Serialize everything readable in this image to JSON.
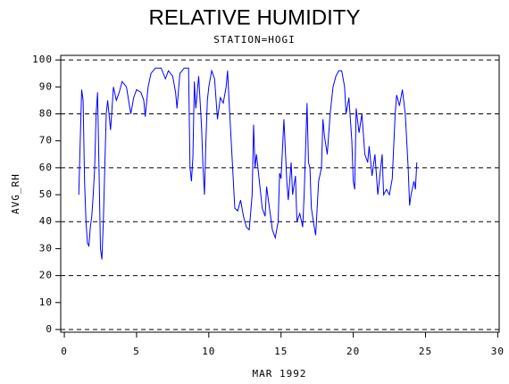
{
  "chart_data": {
    "type": "line",
    "title": "RELATIVE HUMIDITY",
    "subtitle": "STATION=HOGI",
    "x_label": "MAR 1992",
    "y_label": "AVG_RH",
    "xlim": [
      -0.25,
      30.1
    ],
    "ylim": [
      -1,
      101.7
    ],
    "xticks": [
      0,
      5,
      10,
      15,
      20,
      25,
      30
    ],
    "yticks": [
      0,
      10,
      20,
      30,
      40,
      50,
      60,
      70,
      80,
      90,
      100
    ],
    "grid": true,
    "x": [
      1.0,
      1.1,
      1.2,
      1.3,
      1.4,
      1.5,
      1.6,
      1.7,
      1.8,
      1.9,
      2.0,
      2.1,
      2.2,
      2.3,
      2.4,
      2.5,
      2.6,
      2.7,
      2.8,
      2.9,
      3.0,
      3.2,
      3.4,
      3.6,
      3.8,
      4.0,
      4.3,
      4.6,
      4.8,
      5.0,
      5.3,
      5.5,
      5.6,
      5.8,
      6.0,
      6.3,
      6.7,
      7.0,
      7.2,
      7.5,
      7.7,
      7.8,
      8.0,
      8.3,
      8.6,
      8.7,
      8.8,
      8.9,
      9.0,
      9.1,
      9.2,
      9.3,
      9.5,
      9.6,
      9.7,
      9.8,
      9.9,
      10.0,
      10.2,
      10.4,
      10.6,
      10.8,
      11.0,
      11.2,
      11.3,
      11.4,
      11.6,
      11.8,
      12.0,
      12.2,
      12.4,
      12.6,
      12.8,
      13.0,
      13.1,
      13.2,
      13.3,
      13.5,
      13.7,
      13.9,
      14.0,
      14.2,
      14.4,
      14.6,
      14.8,
      14.9,
      15.0,
      15.2,
      15.4,
      15.5,
      15.7,
      15.8,
      16.0,
      16.1,
      16.3,
      16.5,
      16.6,
      16.8,
      16.9,
      17.0,
      17.1,
      17.3,
      17.4,
      17.6,
      17.8,
      17.9,
      18.0,
      18.2,
      18.4,
      18.6,
      18.8,
      19.0,
      19.2,
      19.4,
      19.5,
      19.7,
      19.9,
      20.0,
      20.1,
      20.2,
      20.4,
      20.6,
      20.8,
      21.0,
      21.1,
      21.3,
      21.5,
      21.7,
      21.8,
      22.0,
      22.1,
      22.3,
      22.5,
      22.7,
      22.9,
      23.0,
      23.2,
      23.4,
      23.6,
      23.8,
      23.9,
      24.0,
      24.2,
      24.3,
      24.4
    ],
    "series": [
      {
        "name": "AVG_RH",
        "color": "#0000ff",
        "values": [
          50,
          70,
          89,
          85,
          55,
          40,
          32,
          31,
          38,
          42,
          50,
          60,
          80,
          88,
          60,
          30,
          26,
          40,
          60,
          80,
          85,
          74,
          90,
          85,
          88,
          92,
          90,
          80,
          86,
          89,
          88,
          85,
          79,
          90,
          95,
          97,
          97,
          93,
          96,
          94,
          88,
          82,
          95,
          97,
          97,
          60,
          55,
          64,
          92,
          82,
          88,
          94,
          75,
          60,
          50,
          70,
          85,
          90,
          96,
          93,
          78,
          86,
          84,
          90,
          96,
          85,
          65,
          45,
          44,
          48,
          42,
          38,
          37,
          50,
          76,
          60,
          65,
          55,
          45,
          42,
          53,
          45,
          37,
          34,
          40,
          58,
          56,
          78,
          55,
          48,
          62,
          50,
          57,
          40,
          43,
          38,
          50,
          84,
          62,
          60,
          45,
          38,
          35,
          55,
          60,
          78,
          72,
          65,
          80,
          90,
          94,
          96,
          96,
          90,
          80,
          86,
          70,
          55,
          52,
          82,
          73,
          80,
          65,
          62,
          68,
          57,
          65,
          50,
          55,
          65,
          50,
          52,
          50,
          56,
          80,
          87,
          83,
          89,
          80,
          60,
          46,
          50,
          55,
          52,
          62
        ]
      }
    ]
  }
}
